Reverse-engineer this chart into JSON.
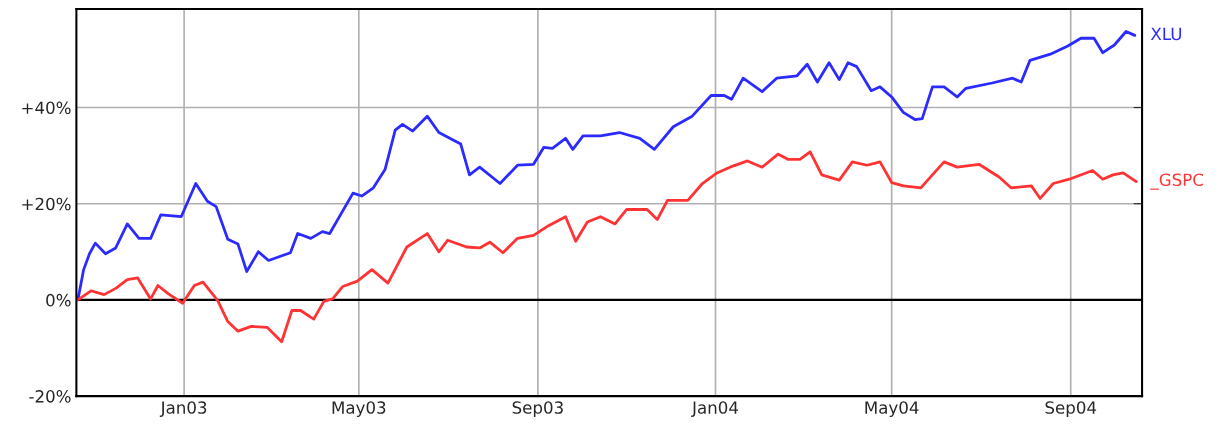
{
  "chart_data": {
    "type": "line",
    "xlim": [
      "2002-10-19",
      "2004-10-20"
    ],
    "ylim": [
      -20,
      60.5
    ],
    "xticks": [
      {
        "value": "2003-01-01",
        "label": "Jan03"
      },
      {
        "value": "2003-05-01",
        "label": "May03"
      },
      {
        "value": "2003-09-01",
        "label": "Sep03"
      },
      {
        "value": "2004-01-01",
        "label": "Jan04"
      },
      {
        "value": "2004-05-01",
        "label": "May04"
      },
      {
        "value": "2004-09-01",
        "label": "Sep04"
      }
    ],
    "yticks": [
      {
        "value": -20,
        "label": "-20%"
      },
      {
        "value": 0,
        "label": "0%"
      },
      {
        "value": 20,
        "label": "+20%"
      },
      {
        "value": 40,
        "label": "+40%"
      }
    ],
    "grid": true,
    "legend": false,
    "ref_lines": [
      {
        "axis": "y",
        "value": 0,
        "color": "#000000"
      }
    ],
    "series": [
      {
        "name": "XLU",
        "color": "#2b2bff",
        "x": [
          "2002-10-20",
          "2002-10-24",
          "2002-10-28",
          "2002-11-01",
          "2002-11-08",
          "2002-11-15",
          "2002-11-23",
          "2002-12-01",
          "2002-12-09",
          "2002-12-16",
          "2002-12-30",
          "2003-01-09",
          "2003-01-17",
          "2003-01-23",
          "2003-01-31",
          "2003-02-07",
          "2003-02-13",
          "2003-02-21",
          "2003-02-28",
          "2003-03-15",
          "2003-03-20",
          "2003-03-29",
          "2003-04-06",
          "2003-04-11",
          "2003-04-27",
          "2003-05-03",
          "2003-05-11",
          "2003-05-19",
          "2003-05-26",
          "2003-05-31",
          "2003-06-07",
          "2003-06-17",
          "2003-06-25",
          "2003-07-10",
          "2003-07-16",
          "2003-07-23",
          "2003-08-06",
          "2003-08-18",
          "2003-08-29",
          "2003-09-05",
          "2003-09-11",
          "2003-09-20",
          "2003-09-25",
          "2003-10-02",
          "2003-10-14",
          "2003-10-27",
          "2003-11-10",
          "2003-11-20",
          "2003-12-03",
          "2003-12-16",
          "2003-12-29",
          "2004-01-07",
          "2004-01-12",
          "2004-01-20",
          "2004-02-02",
          "2004-02-12",
          "2004-02-26",
          "2004-03-04",
          "2004-03-11",
          "2004-03-19",
          "2004-03-26",
          "2004-04-01",
          "2004-04-07",
          "2004-04-17",
          "2004-04-23",
          "2004-05-01",
          "2004-05-09",
          "2004-05-17",
          "2004-05-22",
          "2004-05-29",
          "2004-06-06",
          "2004-06-15",
          "2004-06-21",
          "2004-07-09",
          "2004-07-23",
          "2004-07-29",
          "2004-08-04",
          "2004-08-18",
          "2004-08-30",
          "2004-09-08",
          "2004-09-17",
          "2004-09-23",
          "2004-10-01",
          "2004-10-09",
          "2004-10-15"
        ],
        "values": [
          0,
          6.3,
          9.6,
          11.8,
          9.6,
          10.8,
          15.8,
          12.8,
          12.8,
          17.7,
          17.3,
          24.2,
          20.5,
          19.4,
          12.6,
          11.6,
          5.9,
          10.0,
          8.2,
          9.8,
          13.8,
          12.8,
          14.2,
          13.8,
          22.2,
          21.6,
          23.3,
          27.1,
          35.3,
          36.5,
          35.1,
          38.2,
          34.8,
          32.4,
          26.0,
          27.6,
          24.2,
          28.0,
          28.2,
          31.7,
          31.5,
          33.6,
          31.3,
          34.1,
          34.1,
          34.8,
          33.6,
          31.3,
          36.0,
          38.2,
          42.5,
          42.5,
          41.7,
          46.1,
          43.3,
          46.1,
          46.6,
          49.0,
          45.3,
          49.3,
          45.8,
          49.3,
          48.5,
          43.5,
          44.3,
          42.2,
          39.0,
          37.5,
          37.7,
          44.3,
          44.3,
          42.2,
          44.0,
          45.1,
          46.1,
          45.3,
          49.8,
          51.1,
          52.8,
          54.4,
          54.4,
          51.4,
          53.0,
          55.8,
          55.0
        ]
      },
      {
        "name": "_GSPC",
        "color": "#ff3333",
        "x": [
          "2002-10-20",
          "2002-10-29",
          "2002-11-07",
          "2002-11-15",
          "2002-11-23",
          "2002-11-30",
          "2002-12-09",
          "2002-12-14",
          "2002-12-21",
          "2002-12-31",
          "2003-01-08",
          "2003-01-14",
          "2003-01-24",
          "2003-01-31",
          "2003-02-07",
          "2003-02-16",
          "2003-02-27",
          "2003-03-09",
          "2003-03-16",
          "2003-03-22",
          "2003-03-31",
          "2003-04-07",
          "2003-04-13",
          "2003-04-20",
          "2003-04-30",
          "2003-05-10",
          "2003-05-21",
          "2003-06-03",
          "2003-06-17",
          "2003-06-25",
          "2003-07-01",
          "2003-07-14",
          "2003-07-23",
          "2003-07-30",
          "2003-08-08",
          "2003-08-18",
          "2003-08-29",
          "2003-09-07",
          "2003-09-20",
          "2003-09-27",
          "2003-10-05",
          "2003-10-14",
          "2003-10-24",
          "2003-11-01",
          "2003-11-15",
          "2003-11-22",
          "2003-11-29",
          "2003-12-13",
          "2003-12-23",
          "2004-01-02",
          "2004-01-11",
          "2004-01-23",
          "2004-02-02",
          "2004-02-13",
          "2004-02-20",
          "2004-02-28",
          "2004-03-06",
          "2004-03-14",
          "2004-03-26",
          "2004-04-04",
          "2004-04-14",
          "2004-04-23",
          "2004-05-01",
          "2004-05-09",
          "2004-05-21",
          "2004-06-06",
          "2004-06-15",
          "2004-06-30",
          "2004-07-14",
          "2004-07-22",
          "2004-08-05",
          "2004-08-11",
          "2004-08-20",
          "2004-08-31",
          "2004-09-16",
          "2004-09-23",
          "2004-09-30",
          "2004-10-07",
          "2004-10-16"
        ],
        "values": [
          0,
          1.9,
          1.1,
          2.4,
          4.2,
          4.6,
          0.2,
          3.0,
          1.3,
          -0.7,
          3.0,
          3.7,
          -0.1,
          -4.5,
          -6.5,
          -5.5,
          -5.7,
          -8.7,
          -2.2,
          -2.2,
          -4.0,
          -0.3,
          0.2,
          2.8,
          3.9,
          6.3,
          3.5,
          11.0,
          13.8,
          10.0,
          12.4,
          11.0,
          10.8,
          12.0,
          9.8,
          12.8,
          13.4,
          15.2,
          17.3,
          12.2,
          16.2,
          17.3,
          15.8,
          18.8,
          18.8,
          16.7,
          20.7,
          20.7,
          24.2,
          26.4,
          27.6,
          28.9,
          27.6,
          30.3,
          29.2,
          29.2,
          30.8,
          26.0,
          24.9,
          28.7,
          28.0,
          28.7,
          24.4,
          23.7,
          23.3,
          28.7,
          27.6,
          28.2,
          25.5,
          23.3,
          23.7,
          21.1,
          24.2,
          25.1,
          26.9,
          25.1,
          26.0,
          26.4,
          24.6
        ]
      }
    ]
  }
}
